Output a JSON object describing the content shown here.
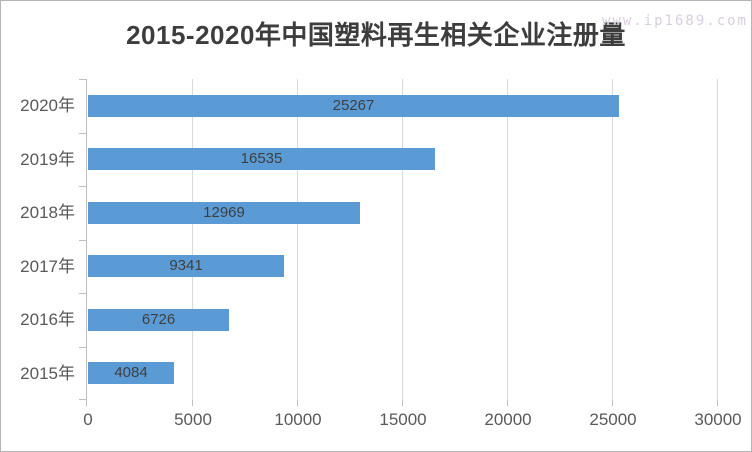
{
  "chart_data": {
    "type": "bar",
    "orientation": "horizontal",
    "title": "2015-2020年中国塑料再生相关企业注册量",
    "categories": [
      "2020年",
      "2019年",
      "2018年",
      "2017年",
      "2016年",
      "2015年"
    ],
    "values": [
      25267,
      16535,
      12969,
      9341,
      6726,
      4084
    ],
    "data_labels": [
      "25267",
      "16535",
      "12969",
      "9341",
      "6726",
      "4084"
    ],
    "data_label_position": "center-of-bar",
    "xlabel": "",
    "ylabel": "",
    "x_axis": {
      "min": 0,
      "max": 30000,
      "tick_step": 5000,
      "tick_labels": [
        "0",
        "5000",
        "10000",
        "15000",
        "20000",
        "25000",
        "30000"
      ]
    },
    "grid": "vertical-major-gridlines",
    "legend": "none",
    "colors": {
      "bar": "#5B9BD5",
      "gridline": "#D9D9D9",
      "axis": "#BFBFBF",
      "axis_text": "#595959",
      "data_label_text": "#3F3F3F",
      "title_text": "#3D3D3D"
    }
  },
  "watermark": {
    "text": "www.ip1689.com",
    "color": "#D9CEDF"
  }
}
